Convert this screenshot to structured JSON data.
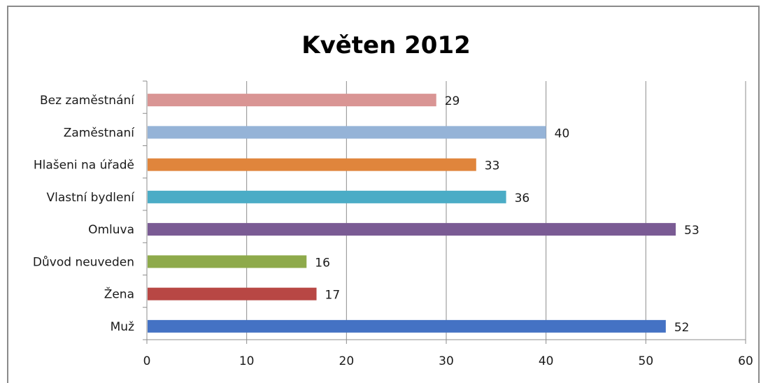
{
  "chart_data": {
    "type": "bar",
    "orientation": "horizontal",
    "title": "Květen 2012",
    "xlabel": "",
    "ylabel": "",
    "categories": [
      "Bez zaměstnání",
      "Zaměstnaní",
      "Hlašeni na úřadě",
      "Vlastní bydlení",
      "Omluva",
      "Důvod neuveden",
      "Žena",
      "Muž"
    ],
    "values": [
      29,
      40,
      33,
      36,
      53,
      16,
      17,
      52
    ],
    "colors": [
      "#d99594",
      "#95b3d7",
      "#e0853c",
      "#4bacc6",
      "#7a5b94",
      "#8eaa4b",
      "#b84744",
      "#4472c4"
    ],
    "xlim": [
      0,
      60
    ],
    "ticks": [
      0,
      10,
      20,
      30,
      40,
      50,
      60
    ],
    "grid": true,
    "legend": "none"
  }
}
